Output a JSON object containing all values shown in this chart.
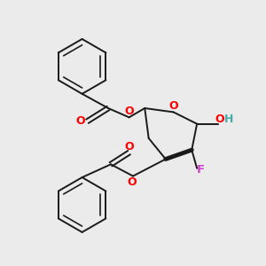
{
  "background_color": "#ebebeb",
  "bond_color": "#1a1a1a",
  "oxygen_color": "#ff0000",
  "fluorine_color": "#cc44cc",
  "hydrogen_color": "#44aaaa",
  "line_width": 1.4,
  "figsize": [
    3.0,
    3.0
  ],
  "dpi": 100,
  "xlim": [
    0,
    10
  ],
  "ylim": [
    0,
    10
  ]
}
